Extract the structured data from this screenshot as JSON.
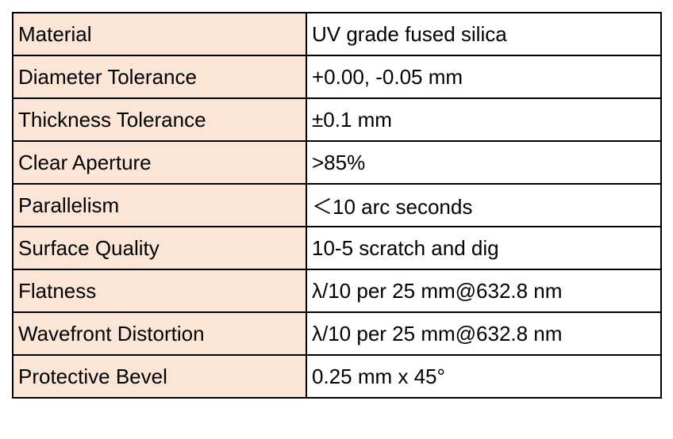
{
  "table": {
    "rows": [
      {
        "label": "Material",
        "value": "UV grade fused silica"
      },
      {
        "label": "Diameter Tolerance",
        "value": "+0.00, -0.05 mm"
      },
      {
        "label": "Thickness Tolerance",
        "value": "±0.1 mm"
      },
      {
        "label": "Clear Aperture",
        "value": ">85%"
      },
      {
        "label": "Parallelism",
        "value": "＜10 arc seconds"
      },
      {
        "label": "Surface Quality",
        "value": "10-5 scratch and dig"
      },
      {
        "label": "Flatness",
        "value": "λ/10 per 25 mm@632.8 nm"
      },
      {
        "label": "Wavefront Distortion",
        "value": "λ/10 per 25 mm@632.8 nm"
      },
      {
        "label": "Protective Bevel",
        "value": "0.25 mm x 45°"
      }
    ],
    "colors": {
      "label_background": "#fbe5d6",
      "value_background": "#ffffff",
      "border": "#000000"
    }
  }
}
